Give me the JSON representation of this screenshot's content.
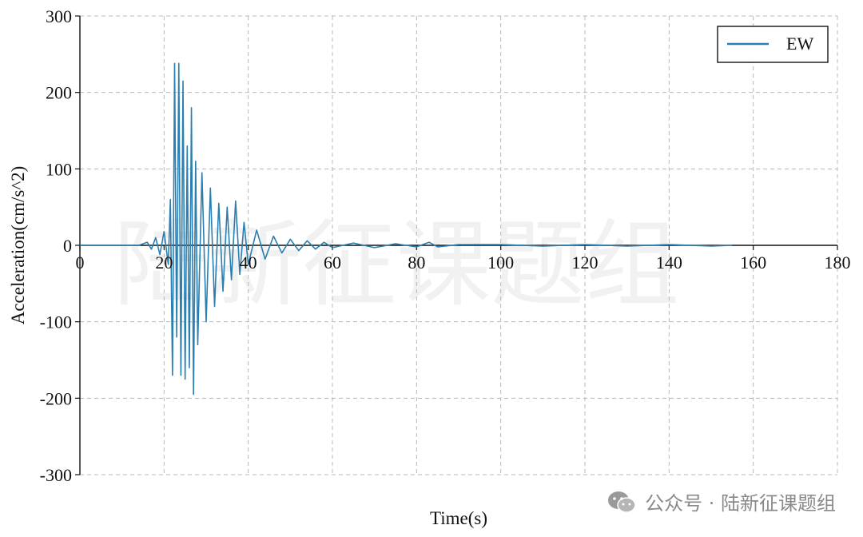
{
  "chart_data": {
    "type": "line",
    "xlabel": "Time(s)",
    "ylabel": "Acceleration(cm/s^2)",
    "xlim": [
      0,
      180
    ],
    "ylim": [
      -300,
      300
    ],
    "xticks": [
      0,
      20,
      40,
      60,
      80,
      100,
      120,
      140,
      160,
      180
    ],
    "yticks": [
      300,
      200,
      100,
      0,
      -100,
      -200,
      -300
    ],
    "grid": true,
    "legend_position": "top-right",
    "series": [
      {
        "name": "EW",
        "color": "#2a7fb0",
        "x": [
          0,
          14,
          16,
          17,
          18,
          19,
          20,
          21,
          21.5,
          22,
          22.5,
          23,
          23.5,
          24,
          24.5,
          25,
          25.5,
          26,
          26.5,
          27,
          27.5,
          28,
          29,
          30,
          31,
          32,
          33,
          34,
          35,
          36,
          37,
          38,
          39,
          40,
          42,
          44,
          46,
          48,
          50,
          52,
          54,
          56,
          58,
          60,
          65,
          70,
          75,
          80,
          83,
          85,
          90,
          100,
          110,
          120,
          130,
          140,
          150,
          155
        ],
        "y": [
          0,
          0,
          4,
          -5,
          10,
          -12,
          18,
          -25,
          60,
          -170,
          238,
          -120,
          238,
          -170,
          215,
          -175,
          130,
          -160,
          180,
          -195,
          110,
          -130,
          95,
          -100,
          75,
          -80,
          55,
          -60,
          50,
          -45,
          58,
          -38,
          30,
          -25,
          20,
          -18,
          12,
          -10,
          8,
          -7,
          6,
          -5,
          4,
          -3,
          3,
          -3,
          2,
          -2,
          4,
          -2,
          1,
          1,
          -1,
          1,
          -1,
          1,
          -1,
          0
        ]
      }
    ]
  },
  "watermark": {
    "background_text": "陆新征课题组",
    "footer_text": "公众号 · 陆新征课题组",
    "footer_icon": "wechat-icon"
  }
}
